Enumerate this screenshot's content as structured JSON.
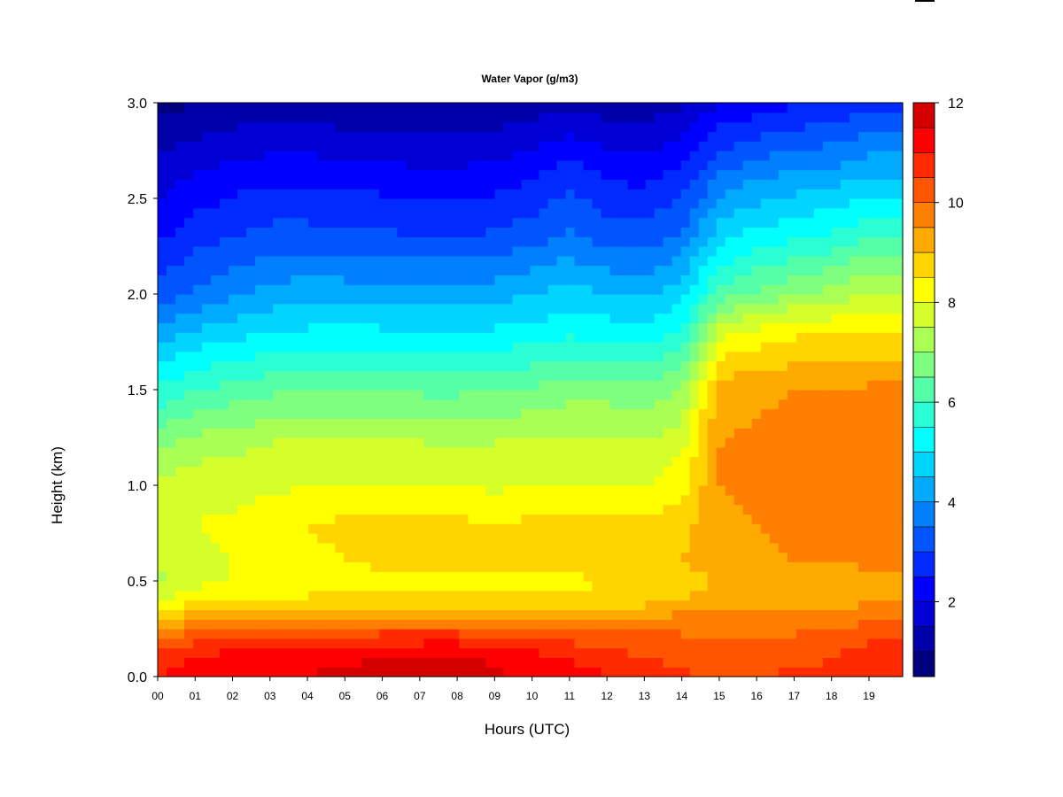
{
  "chart_data": {
    "type": "heatmap",
    "title": "Water Vapor (g/m3)",
    "xlabel": "Hours (UTC)",
    "ylabel": "Height (km)",
    "xlim": [
      0,
      19.9
    ],
    "ylim": [
      0.0,
      3.0
    ],
    "x_ticks": [
      "00",
      "01",
      "02",
      "03",
      "04",
      "05",
      "06",
      "07",
      "08",
      "09",
      "10",
      "11",
      "12",
      "13",
      "14",
      "15",
      "16",
      "17",
      "18",
      "19"
    ],
    "y_ticks": [
      "0.0",
      "0.5",
      "1.0",
      "1.5",
      "2.0",
      "2.5",
      "3.0"
    ],
    "colorbar": {
      "range": [
        0.5,
        12
      ],
      "ticks": [
        "2",
        "4",
        "6",
        "8",
        "10",
        "12"
      ],
      "levels": [
        0.5,
        1.0,
        1.5,
        2.0,
        2.5,
        3.0,
        3.5,
        4.0,
        4.5,
        5.0,
        5.5,
        6.0,
        6.5,
        7.0,
        7.5,
        8.0,
        8.5,
        9.0,
        9.5,
        10.0,
        10.5,
        11.0,
        11.5,
        12.0
      ],
      "colors": [
        "#00007F",
        "#0000AA",
        "#0000D4",
        "#0000FF",
        "#002AFF",
        "#0055FF",
        "#007FFF",
        "#00AAFF",
        "#00D4FF",
        "#00FFFF",
        "#2AFFD4",
        "#55FFAA",
        "#7FFF7F",
        "#AAFF55",
        "#D4FF2A",
        "#FFFF00",
        "#FFD400",
        "#FFAA00",
        "#FF7F00",
        "#FF5500",
        "#FF2A00",
        "#FF0000",
        "#D40000",
        "#AA0000"
      ]
    },
    "hours": [
      0,
      1,
      2,
      3,
      4,
      5,
      6,
      7,
      8,
      9,
      10,
      11,
      12,
      13,
      14,
      15,
      16,
      17,
      18,
      19,
      19.9
    ],
    "heights_km": [
      0.0,
      0.1,
      0.2,
      0.3,
      0.4,
      0.5,
      0.6,
      0.8,
      1.0,
      1.2,
      1.5,
      1.8,
      2.0,
      2.3,
      2.6,
      3.0
    ],
    "values": [
      [
        11.0,
        11.2,
        11.3,
        11.4,
        11.5,
        11.6,
        11.7,
        11.8,
        11.8,
        11.6,
        11.4,
        11.2,
        11.0,
        10.7,
        10.6,
        10.4,
        10.5,
        10.6,
        10.6,
        11.0,
        11.0
      ],
      [
        10.8,
        11.0,
        11.2,
        11.3,
        11.4,
        11.4,
        11.5,
        11.6,
        11.6,
        11.4,
        11.2,
        11.0,
        10.8,
        10.5,
        10.4,
        10.2,
        10.3,
        10.4,
        10.5,
        10.8,
        10.8
      ],
      [
        10.0,
        10.4,
        10.6,
        10.7,
        10.7,
        10.7,
        10.8,
        10.8,
        10.8,
        10.6,
        10.5,
        10.4,
        10.2,
        10.2,
        10.1,
        10.0,
        10.0,
        10.1,
        10.2,
        10.4,
        10.4
      ],
      [
        9.0,
        9.4,
        9.5,
        9.6,
        9.6,
        9.6,
        9.6,
        9.7,
        9.6,
        9.5,
        9.4,
        9.4,
        9.4,
        9.6,
        9.7,
        9.6,
        9.6,
        9.7,
        9.8,
        9.9,
        9.9
      ],
      [
        8.0,
        8.4,
        8.5,
        8.6,
        8.6,
        8.7,
        8.7,
        8.7,
        8.7,
        8.6,
        8.6,
        8.6,
        8.7,
        8.8,
        9.0,
        9.2,
        9.2,
        9.3,
        9.3,
        9.4,
        9.4
      ],
      [
        7.4,
        7.8,
        8.0,
        8.1,
        8.2,
        8.3,
        8.3,
        8.3,
        8.3,
        8.3,
        8.3,
        8.4,
        8.5,
        8.6,
        8.8,
        9.0,
        9.1,
        9.1,
        9.2,
        9.3,
        9.3
      ],
      [
        7.6,
        7.9,
        8.0,
        8.2,
        8.4,
        8.5,
        8.6,
        8.6,
        8.6,
        8.6,
        8.6,
        8.7,
        8.7,
        8.8,
        9.0,
        9.3,
        9.4,
        9.5,
        9.5,
        9.6,
        9.6
      ],
      [
        7.7,
        8.0,
        8.1,
        8.3,
        8.5,
        8.6,
        8.6,
        8.6,
        8.6,
        8.5,
        8.6,
        8.6,
        8.6,
        8.6,
        8.8,
        9.4,
        9.5,
        9.6,
        9.6,
        9.7,
        9.7
      ],
      [
        7.6,
        7.8,
        7.8,
        7.9,
        8.0,
        8.0,
        8.0,
        8.0,
        8.0,
        7.9,
        8.0,
        8.0,
        8.0,
        8.0,
        8.3,
        9.5,
        9.6,
        9.7,
        9.7,
        9.8,
        9.8
      ],
      [
        7.0,
        7.3,
        7.4,
        7.6,
        7.7,
        7.6,
        7.6,
        7.6,
        7.5,
        7.6,
        7.6,
        7.6,
        7.6,
        7.6,
        7.9,
        9.5,
        9.6,
        9.7,
        9.7,
        9.8,
        9.8
      ],
      [
        5.6,
        6.0,
        6.2,
        6.4,
        6.5,
        6.5,
        6.5,
        6.4,
        6.4,
        6.5,
        6.6,
        6.8,
        6.8,
        6.7,
        7.0,
        9.3,
        9.4,
        9.5,
        9.5,
        9.6,
        9.6
      ],
      [
        4.2,
        4.6,
        4.8,
        5.0,
        5.1,
        5.1,
        5.1,
        5.0,
        5.0,
        5.1,
        5.2,
        5.4,
        5.3,
        5.2,
        5.6,
        7.8,
        8.2,
        8.4,
        8.5,
        8.5,
        8.5
      ],
      [
        3.2,
        3.6,
        3.9,
        4.2,
        4.3,
        4.3,
        4.3,
        4.2,
        4.2,
        4.3,
        4.5,
        4.7,
        4.5,
        4.4,
        4.8,
        6.2,
        6.6,
        7.0,
        7.2,
        7.6,
        7.6
      ],
      [
        2.4,
        2.8,
        3.0,
        3.2,
        3.2,
        3.1,
        3.1,
        3.0,
        3.0,
        3.1,
        3.3,
        3.6,
        3.3,
        3.2,
        3.6,
        4.8,
        5.2,
        5.4,
        5.6,
        6.0,
        6.0
      ],
      [
        1.8,
        2.1,
        2.3,
        2.4,
        2.4,
        2.3,
        2.3,
        2.2,
        2.2,
        2.3,
        2.5,
        2.9,
        2.5,
        2.4,
        2.7,
        3.6,
        4.0,
        4.2,
        4.3,
        4.6,
        4.6
      ],
      [
        0.8,
        1.0,
        1.1,
        1.2,
        1.2,
        1.1,
        1.1,
        1.0,
        1.0,
        1.1,
        1.2,
        1.4,
        1.2,
        1.2,
        1.4,
        2.0,
        2.2,
        2.4,
        2.5,
        2.8,
        2.8
      ]
    ]
  }
}
